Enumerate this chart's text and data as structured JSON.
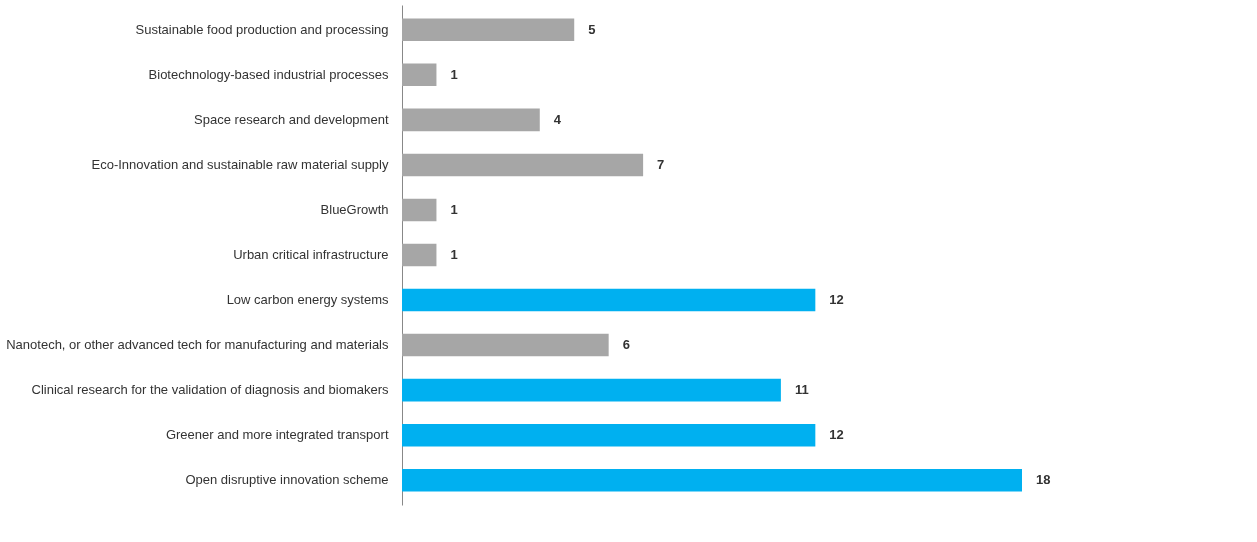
{
  "chart_data": {
    "type": "bar",
    "orientation": "horizontal",
    "data_labels": true,
    "categories": [
      "Sustainable food production and processing",
      "Biotechnology-based industrial processes",
      "Space research and development",
      "Eco-Innovation and sustainable raw material supply",
      "BlueGrowth",
      "Urban critical infrastructure",
      "Low carbon energy systems",
      "Nanotech, or other advanced tech for manufacturing and materials",
      "Clinical research for the validation of diagnosis and biomakers",
      "Greener and more integrated transport",
      "Open disruptive innovation scheme"
    ],
    "values": [
      5,
      1,
      4,
      7,
      1,
      1,
      12,
      6,
      11,
      12,
      18
    ],
    "colors": [
      "#a6a6a6",
      "#a6a6a6",
      "#a6a6a6",
      "#a6a6a6",
      "#a6a6a6",
      "#a6a6a6",
      "#00b0f0",
      "#a6a6a6",
      "#00b0f0",
      "#00b0f0",
      "#00b0f0"
    ]
  }
}
